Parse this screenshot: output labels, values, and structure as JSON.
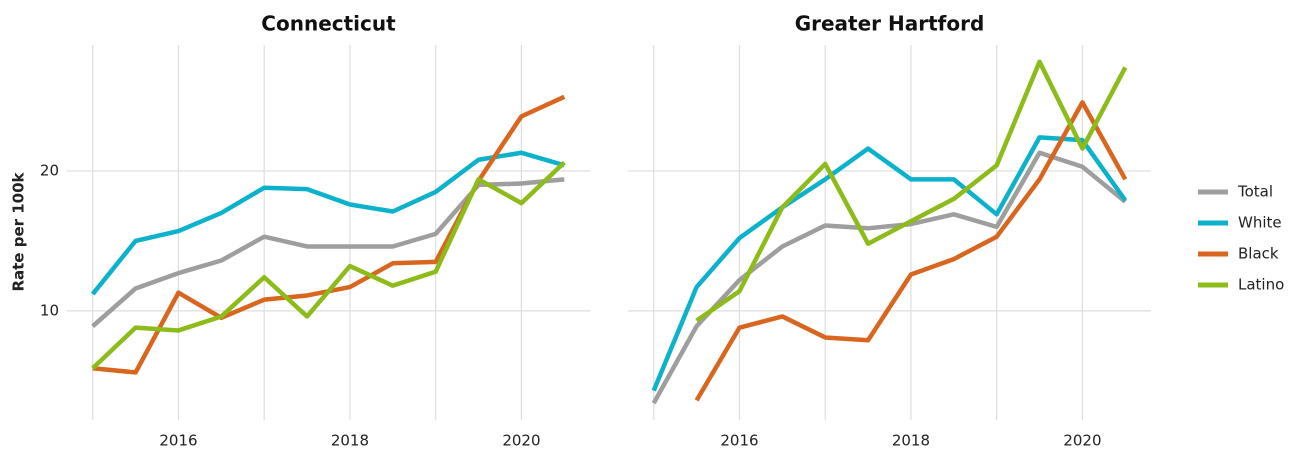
{
  "chart_data": [
    {
      "type": "line",
      "title": "Connecticut",
      "ylabel": "Rate per 100k",
      "x": [
        2015,
        2015.5,
        2016,
        2016.5,
        2017,
        2017.5,
        2018,
        2018.5,
        2019,
        2019.5,
        2020,
        2020.5
      ],
      "series": [
        {
          "name": "Total",
          "color": "#9e9e9e",
          "values": [
            8.9,
            11.6,
            12.7,
            13.6,
            15.3,
            14.6,
            14.6,
            14.6,
            15.5,
            19.0,
            19.1,
            19.4
          ]
        },
        {
          "name": "White",
          "color": "#0cb2cc",
          "values": [
            11.2,
            15.0,
            15.7,
            17.0,
            18.8,
            18.7,
            17.6,
            17.1,
            18.5,
            20.8,
            21.3,
            20.4
          ]
        },
        {
          "name": "Black",
          "color": "#d9661f",
          "values": [
            5.9,
            5.6,
            11.3,
            9.5,
            10.8,
            11.1,
            11.7,
            13.4,
            13.5,
            19.3,
            23.9,
            25.3
          ]
        },
        {
          "name": "Latino",
          "color": "#8cbb1a",
          "values": [
            5.9,
            8.8,
            8.6,
            9.6,
            12.4,
            9.6,
            13.2,
            11.8,
            12.8,
            19.4,
            17.7,
            20.6
          ]
        }
      ],
      "xlim": [
        2014.7,
        2020.8
      ],
      "ylim": [
        2.2,
        29
      ],
      "xticks": [
        2016,
        2018,
        2020
      ],
      "x_minor_ticks": [
        2015,
        2017,
        2019
      ],
      "yticks": [
        10,
        20
      ],
      "y_tick_labels": true,
      "grid": true
    },
    {
      "type": "line",
      "title": "Greater Hartford",
      "x": [
        2015,
        2015.5,
        2016,
        2016.5,
        2017,
        2017.5,
        2018,
        2018.5,
        2019,
        2019.5,
        2020,
        2020.5
      ],
      "series": [
        {
          "color": "#9e9e9e",
          "values": [
            3.4,
            8.9,
            12.2,
            14.6,
            16.1,
            15.9,
            16.2,
            16.9,
            16.0,
            21.3,
            20.3,
            17.8
          ]
        },
        {
          "color": "#0cb2cc",
          "values": [
            4.3,
            11.7,
            15.2,
            17.4,
            19.4,
            21.6,
            19.4,
            19.4,
            16.9,
            22.4,
            22.2,
            17.9
          ]
        },
        {
          "color": "#d9661f",
          "values": [
            null,
            3.6,
            8.8,
            9.6,
            8.1,
            7.9,
            12.6,
            13.7,
            15.3,
            19.4,
            24.9,
            19.4
          ]
        },
        {
          "color": "#8cbb1a",
          "values": [
            null,
            9.3,
            11.4,
            17.4,
            20.5,
            14.8,
            16.4,
            18.0,
            20.4,
            27.8,
            21.6,
            27.4
          ]
        }
      ],
      "xlim": [
        2014.7,
        2020.8
      ],
      "ylim": [
        2.2,
        29
      ],
      "xticks": [
        2016,
        2018,
        2020
      ],
      "x_minor_ticks": [
        2015,
        2017,
        2019
      ],
      "yticks": [
        10,
        20
      ],
      "y_tick_labels": false,
      "grid": true
    }
  ]
}
